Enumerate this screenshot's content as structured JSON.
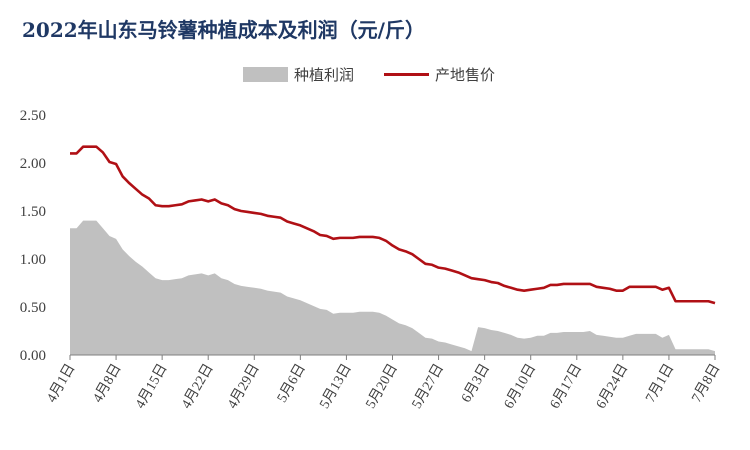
{
  "title": "2022年山东马铃薯种植成本及利润（元/斤）",
  "colors": {
    "area": "#c0c0c0",
    "line": "#b01015",
    "title": "#1f3864",
    "axis": "#404040"
  },
  "chart_data": {
    "type": "area",
    "title": "2022年山东马铃薯种植成本及利润（元/斤）",
    "legend_position": "top-center",
    "grid": false,
    "x": [
      "4月1日",
      "4月2日",
      "4月3日",
      "4月4日",
      "4月5日",
      "4月6日",
      "4月7日",
      "4月8日",
      "4月9日",
      "4月10日",
      "4月11日",
      "4月12日",
      "4月13日",
      "4月14日",
      "4月15日",
      "4月16日",
      "4月17日",
      "4月18日",
      "4月19日",
      "4月20日",
      "4月21日",
      "4月22日",
      "4月23日",
      "4月24日",
      "4月25日",
      "4月26日",
      "4月27日",
      "4月28日",
      "4月29日",
      "4月30日",
      "5月1日",
      "5月2日",
      "5月3日",
      "5月4日",
      "5月5日",
      "5月6日",
      "5月7日",
      "5月8日",
      "5月9日",
      "5月10日",
      "5月11日",
      "5月12日",
      "5月13日",
      "5月14日",
      "5月15日",
      "5月16日",
      "5月17日",
      "5月18日",
      "5月19日",
      "5月20日",
      "5月21日",
      "5月22日",
      "5月23日",
      "5月24日",
      "5月25日",
      "5月26日",
      "5月27日",
      "5月28日",
      "5月29日",
      "5月30日",
      "5月31日",
      "6月1日",
      "6月2日",
      "6月3日",
      "6月4日",
      "6月5日",
      "6月6日",
      "6月7日",
      "6月8日",
      "6月9日",
      "6月10日",
      "6月11日",
      "6月12日",
      "6月13日",
      "6月14日",
      "6月15日",
      "6月16日",
      "6月17日",
      "6月18日",
      "6月19日",
      "6月20日",
      "6月21日",
      "6月22日",
      "6月23日",
      "6月24日",
      "6月25日",
      "6月26日",
      "6月27日",
      "6月28日",
      "6月29日",
      "6月30日",
      "7月1日",
      "7月2日",
      "7月3日",
      "7月4日",
      "7月5日",
      "7月6日",
      "7月7日",
      "7月8日"
    ],
    "xticks": [
      "4月1日",
      "4月8日",
      "4月15日",
      "4月22日",
      "4月29日",
      "5月6日",
      "5月13日",
      "5月20日",
      "5月27日",
      "6月3日",
      "6月10日",
      "6月17日",
      "6月24日",
      "7月1日",
      "7月8日"
    ],
    "ylim": [
      0,
      2.5
    ],
    "yticks": [
      "0.00",
      "0.50",
      "1.00",
      "1.50",
      "2.00",
      "2.50"
    ],
    "series": [
      {
        "name": "种植利润",
        "type": "area",
        "values": [
          1.32,
          1.32,
          1.4,
          1.4,
          1.4,
          1.32,
          1.24,
          1.21,
          1.1,
          1.03,
          0.97,
          0.92,
          0.86,
          0.8,
          0.78,
          0.78,
          0.79,
          0.8,
          0.83,
          0.84,
          0.85,
          0.83,
          0.85,
          0.8,
          0.78,
          0.74,
          0.72,
          0.71,
          0.7,
          0.69,
          0.67,
          0.66,
          0.65,
          0.61,
          0.59,
          0.57,
          0.54,
          0.51,
          0.48,
          0.47,
          0.43,
          0.44,
          0.44,
          0.44,
          0.45,
          0.45,
          0.45,
          0.44,
          0.41,
          0.37,
          0.33,
          0.31,
          0.28,
          0.23,
          0.18,
          0.17,
          0.14,
          0.13,
          0.11,
          0.09,
          0.07,
          0.04,
          0.29,
          0.28,
          0.26,
          0.25,
          0.23,
          0.21,
          0.18,
          0.17,
          0.18,
          0.2,
          0.2,
          0.23,
          0.23,
          0.24,
          0.24,
          0.24,
          0.24,
          0.25,
          0.21,
          0.2,
          0.19,
          0.18,
          0.18,
          0.2,
          0.22,
          0.22,
          0.22,
          0.22,
          0.18,
          0.21,
          0.06,
          0.06,
          0.06,
          0.06,
          0.06,
          0.06,
          0.04
        ]
      },
      {
        "name": "产地售价",
        "type": "line",
        "values": [
          2.1,
          2.1,
          2.17,
          2.17,
          2.17,
          2.11,
          2.01,
          1.99,
          1.86,
          1.79,
          1.73,
          1.67,
          1.63,
          1.56,
          1.55,
          1.55,
          1.56,
          1.57,
          1.6,
          1.61,
          1.62,
          1.6,
          1.62,
          1.58,
          1.56,
          1.52,
          1.5,
          1.49,
          1.48,
          1.47,
          1.45,
          1.44,
          1.43,
          1.39,
          1.37,
          1.35,
          1.32,
          1.29,
          1.25,
          1.24,
          1.21,
          1.22,
          1.22,
          1.22,
          1.23,
          1.23,
          1.23,
          1.22,
          1.19,
          1.14,
          1.1,
          1.08,
          1.05,
          1.0,
          0.95,
          0.94,
          0.91,
          0.9,
          0.88,
          0.86,
          0.83,
          0.8,
          0.79,
          0.78,
          0.76,
          0.75,
          0.72,
          0.7,
          0.68,
          0.67,
          0.68,
          0.69,
          0.7,
          0.73,
          0.73,
          0.74,
          0.74,
          0.74,
          0.74,
          0.74,
          0.71,
          0.7,
          0.69,
          0.67,
          0.67,
          0.71,
          0.71,
          0.71,
          0.71,
          0.71,
          0.68,
          0.7,
          0.56,
          0.56,
          0.56,
          0.56,
          0.56,
          0.56,
          0.54
        ]
      }
    ]
  }
}
